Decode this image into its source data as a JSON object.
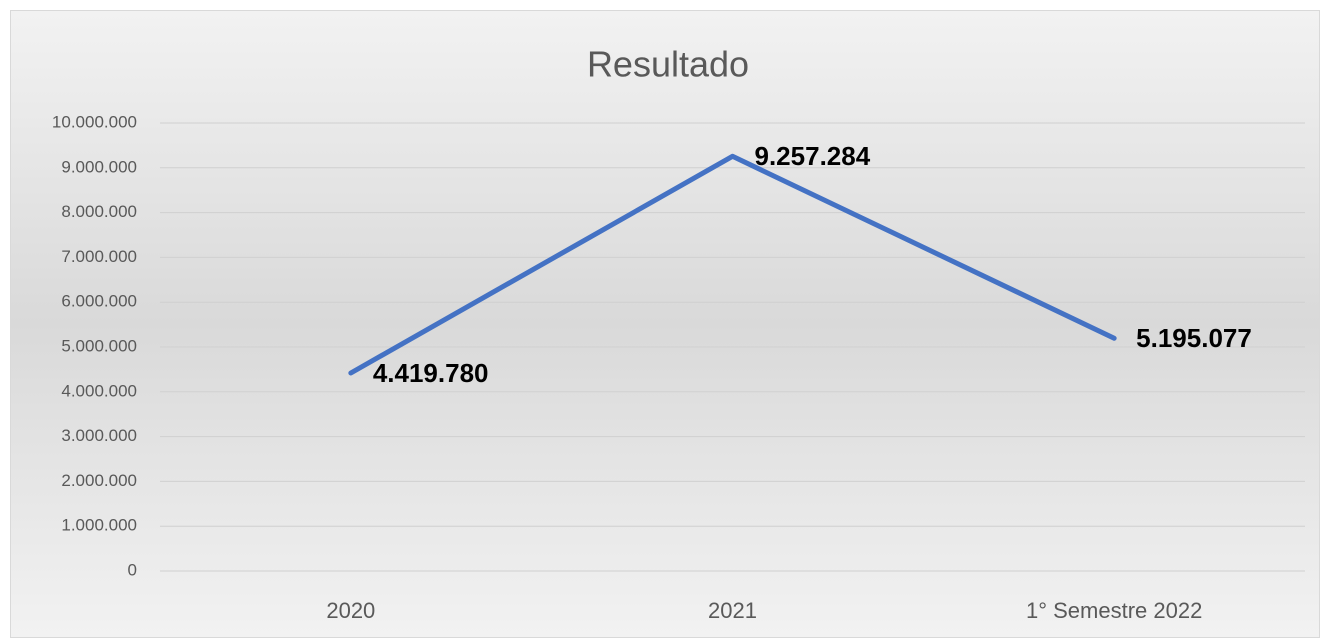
{
  "chart_data": {
    "type": "line",
    "title": "Resultado",
    "categories": [
      "2020",
      "2021",
      "1° Semestre 2022"
    ],
    "series": [
      {
        "name": "Resultado",
        "color": "#4472c4",
        "values": [
          4419780,
          9257284,
          5195077
        ],
        "value_labels": [
          "4.419.780",
          "9.257.284",
          "5.195.077"
        ]
      }
    ],
    "ylim": [
      0,
      10000000
    ],
    "yticks": [
      0,
      {
        "value": 1000000,
        "label": "1.000.000"
      },
      {
        "value": 2000000,
        "label": "2.000.000"
      },
      {
        "value": 3000000,
        "label": "3.000.000"
      },
      {
        "value": 4000000,
        "label": "4.000.000"
      },
      {
        "value": 5000000,
        "label": "5.000.000"
      },
      {
        "value": 6000000,
        "label": "6.000.000"
      },
      {
        "value": 7000000,
        "label": "7.000.000"
      },
      {
        "value": 8000000,
        "label": "8.000.000"
      },
      {
        "value": 9000000,
        "label": "9.000.000"
      },
      {
        "value": 10000000,
        "label": "10.000.000"
      }
    ],
    "grid": true
  }
}
